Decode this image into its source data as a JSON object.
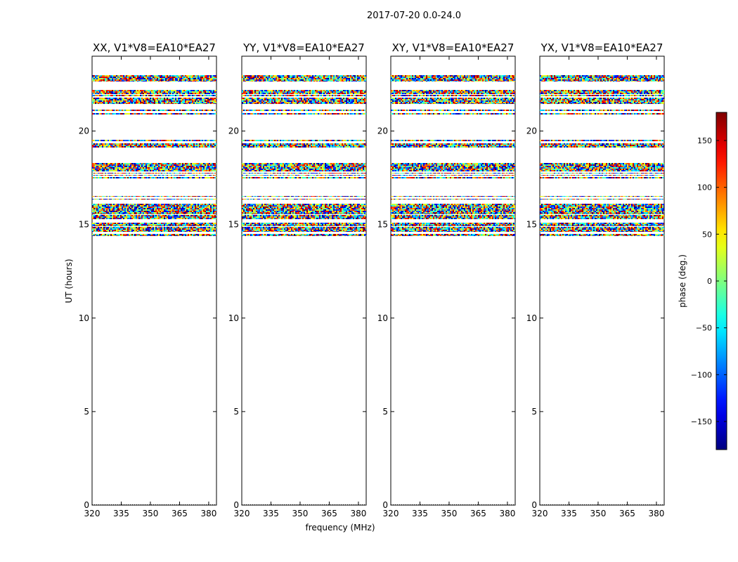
{
  "suptitle": "2017-07-20 0.0-24.0",
  "xlabel": "frequency (MHz)",
  "ylabel": "UT (hours)",
  "chart_data": {
    "type": "heatmap",
    "panels": [
      {
        "title": "XX, V1*V8=EA10*EA27"
      },
      {
        "title": "YY, V1*V8=EA10*EA27"
      },
      {
        "title": "XY, V1*V8=EA10*EA27"
      },
      {
        "title": "YX, V1*V8=EA10*EA27"
      }
    ],
    "xlim": [
      320,
      384
    ],
    "ylim": [
      0,
      24
    ],
    "xticks": [
      "320",
      "335",
      "350",
      "365",
      "380"
    ],
    "xtick_values": [
      320,
      335,
      350,
      365,
      380
    ],
    "yticks": [
      "0",
      "5",
      "10",
      "15",
      "20"
    ],
    "ytick_values": [
      0,
      5,
      10,
      15,
      20
    ],
    "data_bands_hours": [
      [
        22.65,
        23.0
      ],
      [
        21.97,
        22.2
      ],
      [
        21.87,
        21.92
      ],
      [
        21.45,
        21.8
      ],
      [
        21.07,
        21.14
      ],
      [
        20.88,
        20.96
      ],
      [
        19.46,
        19.53
      ],
      [
        19.12,
        19.34
      ],
      [
        17.84,
        18.29
      ],
      [
        17.72,
        17.78
      ],
      [
        17.6,
        17.66
      ],
      [
        17.45,
        17.55
      ],
      [
        16.48,
        16.52
      ],
      [
        16.33,
        16.37
      ],
      [
        15.55,
        16.1
      ],
      [
        15.3,
        15.5
      ],
      [
        14.9,
        15.1
      ],
      [
        14.6,
        14.87
      ],
      [
        14.4,
        14.5
      ],
      [
        0.0,
        0.03
      ]
    ],
    "colorbar": {
      "label": "phase (deg.)",
      "range": [
        -180,
        180
      ],
      "ticks": [
        "−150",
        "−100",
        "−50",
        "0",
        "50",
        "100",
        "150"
      ],
      "tick_values": [
        -150,
        -100,
        -50,
        0,
        50,
        100,
        150
      ],
      "colormap": "jet"
    }
  }
}
